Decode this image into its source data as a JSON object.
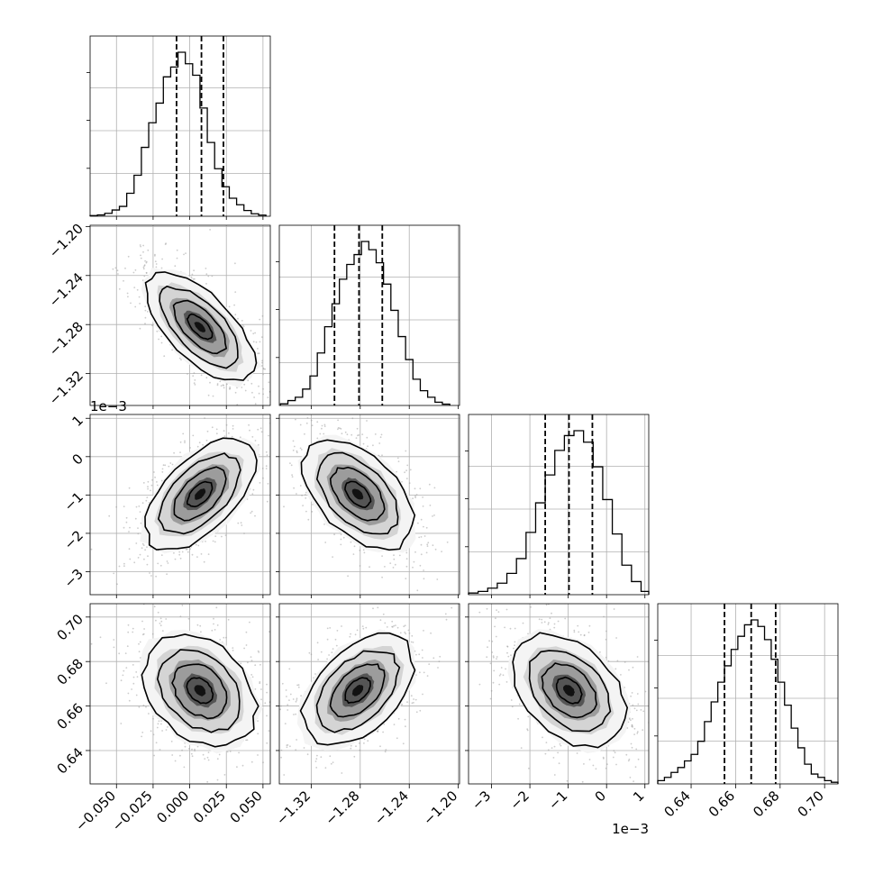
{
  "chart_data": {
    "type": "corner",
    "title": "",
    "grid": true,
    "parameters": [
      {
        "index": 0,
        "range": [
          -0.068,
          0.055
        ],
        "ticks": [
          -0.05,
          -0.025,
          0.0,
          0.025,
          0.05
        ],
        "tick_labels": [
          "−0.050",
          "−0.025",
          "0.000",
          "0.025",
          "0.050"
        ],
        "offset_label": "",
        "quantiles": [
          -0.009,
          0.008,
          0.023
        ],
        "hist_bins": [
          -0.068,
          -0.063,
          -0.058,
          -0.053,
          -0.048,
          -0.043,
          -0.038,
          -0.033,
          -0.028,
          -0.023,
          -0.018,
          -0.013,
          -0.008,
          -0.003,
          0.002,
          0.007,
          0.012,
          0.017,
          0.022,
          0.027,
          0.032,
          0.037,
          0.042,
          0.047,
          0.052
        ],
        "hist_counts": [
          0.004,
          0.008,
          0.018,
          0.038,
          0.06,
          0.14,
          0.25,
          0.42,
          0.57,
          0.69,
          0.85,
          0.91,
          1.0,
          0.93,
          0.86,
          0.66,
          0.45,
          0.29,
          0.18,
          0.11,
          0.07,
          0.035,
          0.015,
          0.007
        ]
      },
      {
        "index": 1,
        "range": [
          -1.346,
          -1.199
        ],
        "ticks": [
          -1.32,
          -1.28,
          -1.24,
          -1.2
        ],
        "tick_labels": [
          "−1.32",
          "−1.28",
          "−1.24",
          "−1.20"
        ],
        "offset_label": "",
        "quantiles": [
          -1.301,
          -1.281,
          -1.262
        ],
        "hist_bins": [
          -1.345,
          -1.339,
          -1.333,
          -1.327,
          -1.321,
          -1.315,
          -1.309,
          -1.303,
          -1.297,
          -1.291,
          -1.285,
          -1.279,
          -1.273,
          -1.267,
          -1.261,
          -1.255,
          -1.249,
          -1.243,
          -1.237,
          -1.231,
          -1.225,
          -1.219,
          -1.213,
          -1.207
        ],
        "hist_counts": [
          0.01,
          0.03,
          0.05,
          0.1,
          0.18,
          0.32,
          0.48,
          0.62,
          0.77,
          0.86,
          0.92,
          1.0,
          0.95,
          0.87,
          0.74,
          0.58,
          0.42,
          0.28,
          0.16,
          0.09,
          0.05,
          0.02,
          0.008
        ]
      },
      {
        "index": 2,
        "range": [
          -3.6,
          1.1
        ],
        "ticks": [
          -3,
          -2,
          -1,
          0,
          1
        ],
        "tick_labels": [
          "−3",
          "−2",
          "−1",
          "0",
          "1"
        ],
        "offset_label": "1e−3",
        "quantiles": [
          -1.6,
          -0.98,
          -0.37
        ],
        "hist_bins": [
          -3.6,
          -3.35,
          -3.1,
          -2.85,
          -2.6,
          -2.35,
          -2.1,
          -1.85,
          -1.6,
          -1.35,
          -1.1,
          -0.85,
          -0.6,
          -0.35,
          -0.1,
          0.15,
          0.4,
          0.65,
          0.9,
          1.1
        ],
        "hist_counts": [
          0.01,
          0.02,
          0.04,
          0.07,
          0.13,
          0.22,
          0.38,
          0.56,
          0.73,
          0.88,
          0.97,
          1.0,
          0.93,
          0.78,
          0.58,
          0.37,
          0.18,
          0.08,
          0.02
        ]
      },
      {
        "index": 3,
        "range": [
          0.625,
          0.706
        ],
        "ticks": [
          0.64,
          0.66,
          0.68,
          0.7
        ],
        "tick_labels": [
          "0.64",
          "0.66",
          "0.68",
          "0.70"
        ],
        "offset_label": "",
        "quantiles": [
          0.655,
          0.667,
          0.678
        ],
        "hist_bins": [
          0.625,
          0.628,
          0.631,
          0.634,
          0.637,
          0.64,
          0.643,
          0.646,
          0.649,
          0.652,
          0.655,
          0.658,
          0.661,
          0.664,
          0.667,
          0.67,
          0.673,
          0.676,
          0.679,
          0.682,
          0.685,
          0.688,
          0.691,
          0.694,
          0.697,
          0.7,
          0.703,
          0.706
        ],
        "hist_counts": [
          0.02,
          0.04,
          0.07,
          0.1,
          0.14,
          0.18,
          0.26,
          0.38,
          0.5,
          0.62,
          0.72,
          0.82,
          0.9,
          0.97,
          1.0,
          0.96,
          0.88,
          0.76,
          0.62,
          0.48,
          0.34,
          0.22,
          0.12,
          0.06,
          0.04,
          0.02,
          0.01
        ]
      }
    ],
    "pairs": [
      {
        "x": 0,
        "y": 1,
        "center": [
          0.007,
          -1.282
        ],
        "corr": -0.85
      },
      {
        "x": 0,
        "y": 2,
        "center": [
          0.007,
          -0.98
        ],
        "corr": 0.78
      },
      {
        "x": 1,
        "y": 2,
        "center": [
          -1.282,
          -0.98
        ],
        "corr": -0.72
      },
      {
        "x": 0,
        "y": 3,
        "center": [
          0.007,
          0.667
        ],
        "corr": -0.55
      },
      {
        "x": 1,
        "y": 3,
        "center": [
          -1.282,
          0.667
        ],
        "corr": 0.7
      },
      {
        "x": 2,
        "y": 3,
        "center": [
          -0.98,
          0.667
        ],
        "corr": -0.6
      }
    ],
    "contour_levels_sigma": [
      0.5,
      1.0,
      1.5,
      2.0
    ]
  }
}
